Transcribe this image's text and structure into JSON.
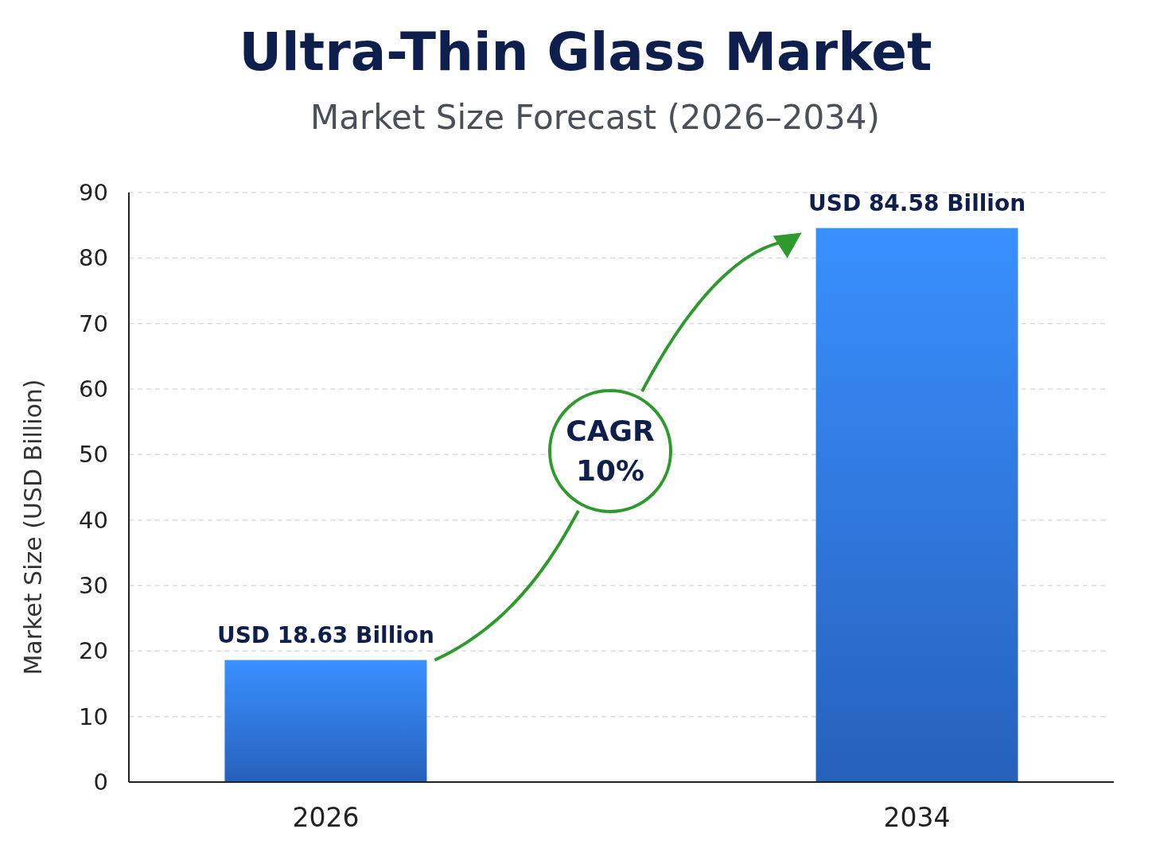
{
  "chart_data": {
    "type": "bar",
    "title": "Ultra-Thin Glass Market",
    "subtitle": "Market Size Forecast (2026–2034)",
    "ylabel": "Market Size (USD Billion)",
    "categories": [
      "2026",
      "2034"
    ],
    "values": [
      18.63,
      84.58
    ],
    "value_labels": [
      "USD 18.63 Billion",
      "USD 84.58 Billion"
    ],
    "color": "#2e74e0",
    "ylim": [
      0,
      90
    ],
    "yticks": [
      0,
      10,
      20,
      30,
      40,
      50,
      60,
      70,
      80,
      90
    ],
    "grid": "y",
    "annotations": [
      "CAGR\n10%"
    ]
  }
}
